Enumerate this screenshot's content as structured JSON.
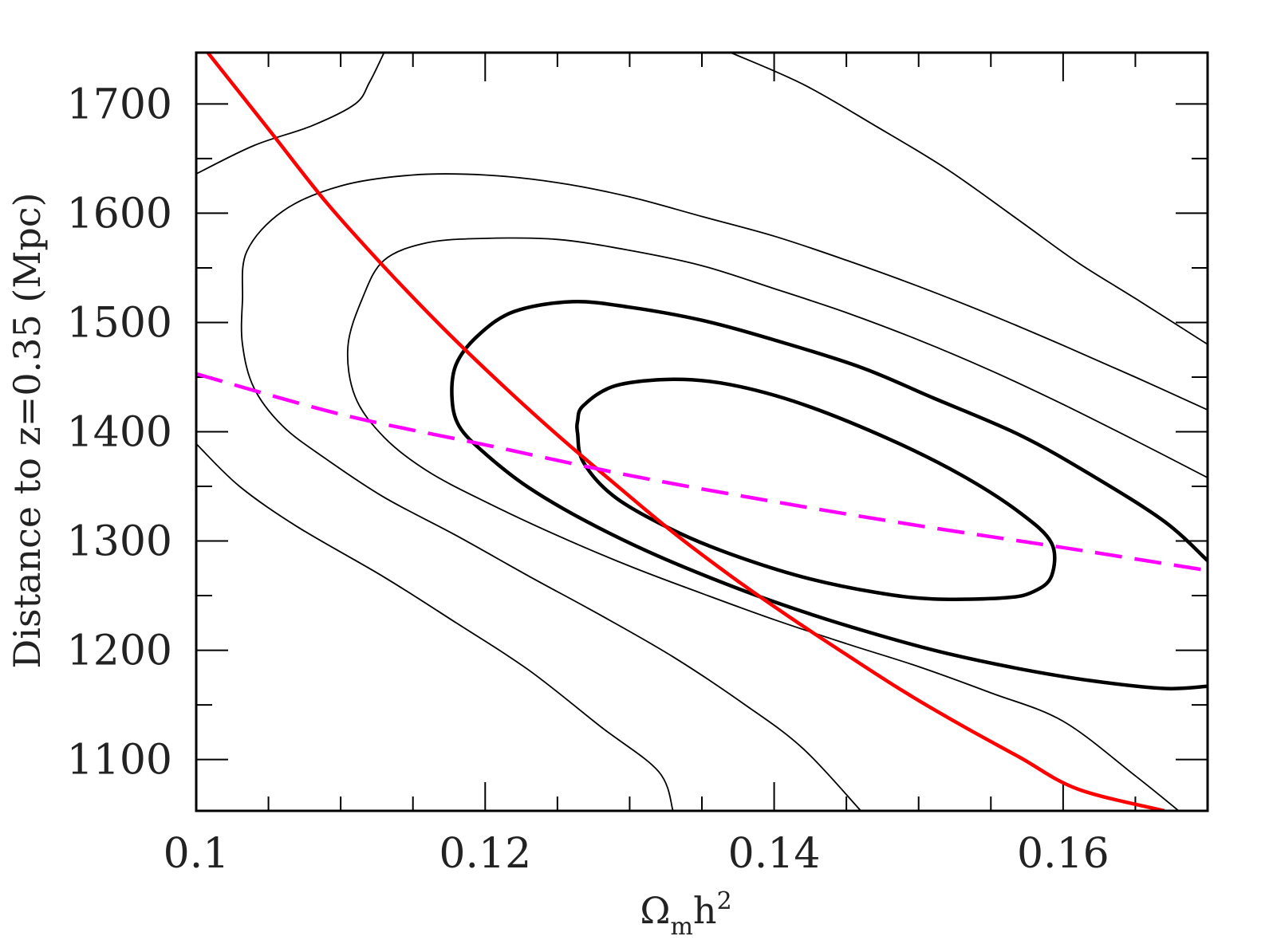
{
  "chart_data": {
    "type": "line",
    "title": "",
    "xlabel": {
      "main": "Ω",
      "sub": "m",
      "tail": "h",
      "sup": "2"
    },
    "ylabel": "Distance to z=0.35 (Mpc)",
    "xlim": [
      0.1,
      0.17
    ],
    "ylim": [
      1053,
      1747
    ],
    "x_ticks": [
      0.1,
      0.12,
      0.14,
      0.16
    ],
    "x_tick_labels": [
      "0.1",
      "0.12",
      "0.14",
      "0.16"
    ],
    "x_minor_step": 0.005,
    "y_ticks": [
      1100,
      1200,
      1300,
      1400,
      1500,
      1600,
      1700
    ],
    "y_tick_labels": [
      "1100",
      "1200",
      "1300",
      "1400",
      "1500",
      "1600",
      "1700"
    ],
    "y_minor_step": 50,
    "colors": {
      "contour": "#000000",
      "red_curve": "#ff0000",
      "magenta_curve": "#ff00ff",
      "frame": "#000000"
    },
    "series": [
      {
        "name": "contour-inner",
        "style": "thick",
        "closed": true,
        "points": [
          [
            0.1264,
            1410
          ],
          [
            0.1268,
            1424
          ],
          [
            0.129,
            1442
          ],
          [
            0.133,
            1448
          ],
          [
            0.137,
            1443
          ],
          [
            0.142,
            1425
          ],
          [
            0.148,
            1393
          ],
          [
            0.153,
            1360
          ],
          [
            0.157,
            1326
          ],
          [
            0.1592,
            1298
          ],
          [
            0.1592,
            1268
          ],
          [
            0.158,
            1254
          ],
          [
            0.156,
            1248
          ],
          [
            0.151,
            1247
          ],
          [
            0.147,
            1253
          ],
          [
            0.142,
            1267
          ],
          [
            0.137,
            1288
          ],
          [
            0.133,
            1310
          ],
          [
            0.129,
            1340
          ],
          [
            0.1268,
            1372
          ],
          [
            0.1264,
            1398
          ],
          [
            0.1264,
            1410
          ]
        ]
      },
      {
        "name": "contour-second",
        "style": "thick",
        "closed": false,
        "points": [
          [
            0.17,
            1282
          ],
          [
            0.167,
            1318
          ],
          [
            0.162,
            1360
          ],
          [
            0.157,
            1397
          ],
          [
            0.151,
            1431
          ],
          [
            0.146,
            1459
          ],
          [
            0.14,
            1484
          ],
          [
            0.135,
            1502
          ],
          [
            0.13,
            1514
          ],
          [
            0.126,
            1519
          ],
          [
            0.122,
            1510
          ],
          [
            0.1195,
            1488
          ],
          [
            0.118,
            1462
          ],
          [
            0.1177,
            1432
          ],
          [
            0.1182,
            1405
          ],
          [
            0.12,
            1380
          ],
          [
            0.123,
            1349
          ],
          [
            0.127,
            1318
          ],
          [
            0.132,
            1286
          ],
          [
            0.138,
            1254
          ],
          [
            0.143,
            1231
          ],
          [
            0.148,
            1211
          ],
          [
            0.152,
            1197
          ],
          [
            0.157,
            1183
          ],
          [
            0.162,
            1172
          ],
          [
            0.167,
            1165
          ],
          [
            0.17,
            1167
          ]
        ]
      },
      {
        "name": "contour-third",
        "style": "thin",
        "closed": false,
        "points": [
          [
            0.17,
            1358
          ],
          [
            0.165,
            1392
          ],
          [
            0.16,
            1425
          ],
          [
            0.155,
            1456
          ],
          [
            0.15,
            1484
          ],
          [
            0.145,
            1509
          ],
          [
            0.14,
            1531
          ],
          [
            0.135,
            1552
          ],
          [
            0.13,
            1566
          ],
          [
            0.125,
            1576
          ],
          [
            0.12,
            1577
          ],
          [
            0.116,
            1573
          ],
          [
            0.113,
            1557
          ],
          [
            0.1115,
            1522
          ],
          [
            0.1105,
            1478
          ],
          [
            0.111,
            1432
          ],
          [
            0.113,
            1395
          ],
          [
            0.116,
            1364
          ],
          [
            0.12,
            1336
          ],
          [
            0.125,
            1305
          ],
          [
            0.13,
            1277
          ],
          [
            0.135,
            1252
          ],
          [
            0.14,
            1228
          ],
          [
            0.145,
            1206
          ],
          [
            0.15,
            1185
          ],
          [
            0.155,
            1161
          ],
          [
            0.16,
            1135
          ],
          [
            0.165,
            1085
          ],
          [
            0.168,
            1053
          ]
        ]
      },
      {
        "name": "contour-fourth",
        "style": "thin",
        "closed": false,
        "points": [
          [
            0.17,
            1420
          ],
          [
            0.165,
            1450
          ],
          [
            0.16,
            1479
          ],
          [
            0.155,
            1507
          ],
          [
            0.15,
            1533
          ],
          [
            0.145,
            1557
          ],
          [
            0.14,
            1579
          ],
          [
            0.135,
            1597
          ],
          [
            0.13,
            1615
          ],
          [
            0.125,
            1628
          ],
          [
            0.12,
            1635
          ],
          [
            0.115,
            1635
          ],
          [
            0.11,
            1625
          ],
          [
            0.106,
            1602
          ],
          [
            0.1035,
            1565
          ],
          [
            0.1032,
            1520
          ],
          [
            0.1032,
            1480
          ],
          [
            0.104,
            1440
          ],
          [
            0.106,
            1405
          ],
          [
            0.109,
            1375
          ],
          [
            0.113,
            1340
          ],
          [
            0.118,
            1305
          ],
          [
            0.123,
            1268
          ],
          [
            0.128,
            1232
          ],
          [
            0.133,
            1194
          ],
          [
            0.138,
            1150
          ],
          [
            0.142,
            1110
          ],
          [
            0.146,
            1053
          ]
        ]
      },
      {
        "name": "contour-outer-left",
        "style": "thin",
        "closed": false,
        "points": [
          [
            0.1,
            1389
          ],
          [
            0.103,
            1350
          ],
          [
            0.107,
            1313
          ],
          [
            0.113,
            1267
          ],
          [
            0.118,
            1225
          ],
          [
            0.123,
            1182
          ],
          [
            0.128,
            1130
          ],
          [
            0.132,
            1089
          ],
          [
            0.133,
            1053
          ]
        ]
      },
      {
        "name": "contour-outer-top-left",
        "style": "thin",
        "closed": false,
        "points": [
          [
            0.1,
            1636
          ],
          [
            0.104,
            1662
          ],
          [
            0.108,
            1680
          ],
          [
            0.111,
            1700
          ],
          [
            0.112,
            1720
          ],
          [
            0.113,
            1747
          ]
        ]
      },
      {
        "name": "contour-outer-top-right",
        "style": "thin",
        "closed": false,
        "points": [
          [
            0.137,
            1747
          ],
          [
            0.142,
            1718
          ],
          [
            0.147,
            1680
          ],
          [
            0.152,
            1640
          ],
          [
            0.157,
            1593
          ],
          [
            0.161,
            1555
          ],
          [
            0.165,
            1522
          ],
          [
            0.17,
            1480
          ]
        ]
      },
      {
        "name": "red-curve",
        "style": "red",
        "closed": false,
        "points": [
          [
            0.1008,
            1747
          ],
          [
            0.105,
            1677
          ],
          [
            0.109,
            1610
          ],
          [
            0.113,
            1551
          ],
          [
            0.117,
            1496
          ],
          [
            0.121,
            1445
          ],
          [
            0.125,
            1397
          ],
          [
            0.129,
            1352
          ],
          [
            0.133,
            1308
          ],
          [
            0.137,
            1268
          ],
          [
            0.141,
            1231
          ],
          [
            0.145,
            1196
          ],
          [
            0.149,
            1162
          ],
          [
            0.153,
            1131
          ],
          [
            0.157,
            1102
          ],
          [
            0.161,
            1073
          ],
          [
            0.167,
            1053
          ]
        ]
      },
      {
        "name": "magenta-dashed",
        "style": "magenta",
        "closed": false,
        "points": [
          [
            0.1,
            1453
          ],
          [
            0.11,
            1416
          ],
          [
            0.12,
            1388
          ],
          [
            0.13,
            1360
          ],
          [
            0.14,
            1336
          ],
          [
            0.15,
            1314
          ],
          [
            0.16,
            1294
          ],
          [
            0.17,
            1273
          ]
        ]
      }
    ]
  }
}
